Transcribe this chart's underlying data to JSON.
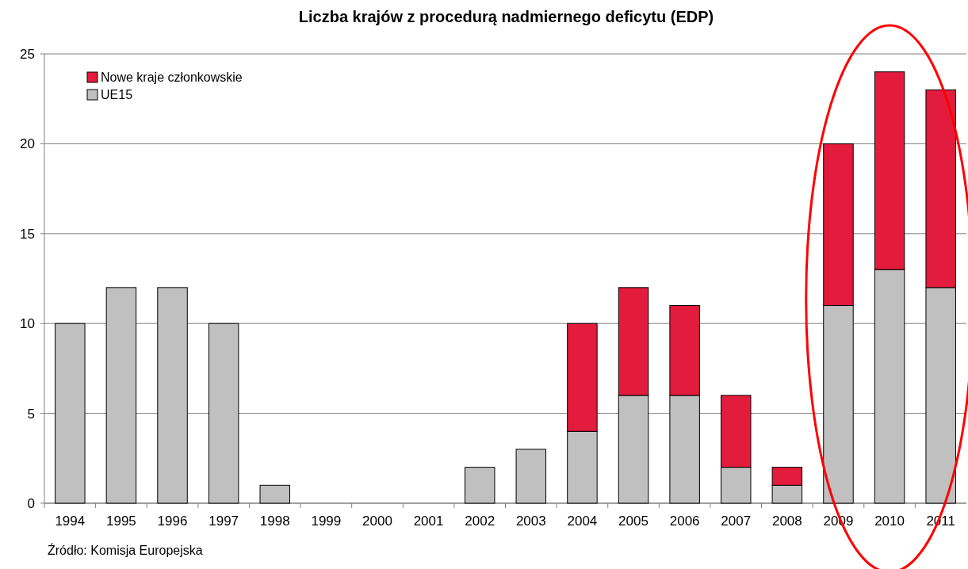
{
  "chart_data": {
    "type": "bar",
    "title": "Liczba krajów z procedurą nadmiernego deficytu (EDP)",
    "categories": [
      "1994",
      "1995",
      "1996",
      "1997",
      "1998",
      "1999",
      "2000",
      "2001",
      "2002",
      "2003",
      "2004",
      "2005",
      "2006",
      "2007",
      "2008",
      "2009",
      "2010",
      "2011"
    ],
    "stacked": true,
    "series": [
      {
        "name": "UE15",
        "color": "#c0c0c0",
        "values": [
          10,
          12,
          12,
          10,
          1,
          0,
          0,
          0,
          2,
          3,
          4,
          6,
          6,
          2,
          1,
          11,
          13,
          12
        ]
      },
      {
        "name": "Nowe kraje członkowskie",
        "color": "#e31b3c",
        "values": [
          0,
          0,
          0,
          0,
          0,
          0,
          0,
          0,
          0,
          0,
          6,
          6,
          5,
          4,
          1,
          9,
          11,
          11
        ]
      }
    ],
    "ylim": [
      0,
      25
    ],
    "yticks": [
      0,
      5,
      10,
      15,
      20,
      25
    ],
    "grid": "y",
    "legend": "top left",
    "annotations": [
      "Źródło: Komisja Europejska"
    ]
  }
}
